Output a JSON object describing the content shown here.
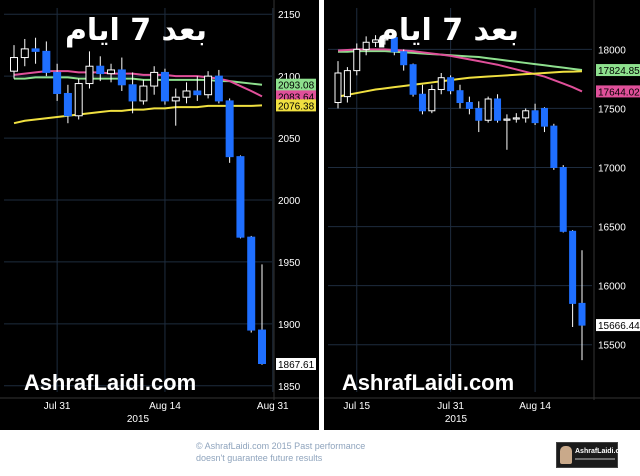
{
  "chart_data": [
    {
      "type": "candlestick",
      "instrument": "",
      "title": "بعد 7 ايام",
      "watermark": "AshrafLaidi.com",
      "ylim": [
        1845,
        2155
      ],
      "yticks": [
        1850,
        1900,
        1950,
        2000,
        2050,
        2100,
        2150
      ],
      "x_tick_labels": [
        {
          "label": "Jul 31",
          "index": 4
        },
        {
          "label": "Aug 14",
          "index": 14
        },
        {
          "label": "Aug 31",
          "index": 24
        }
      ],
      "year_label": "2015",
      "candles": [
        {
          "o": 2104,
          "h": 2125,
          "l": 2098,
          "c": 2115
        },
        {
          "o": 2115,
          "h": 2130,
          "l": 2108,
          "c": 2122
        },
        {
          "o": 2122,
          "h": 2131,
          "l": 2110,
          "c": 2120
        },
        {
          "o": 2120,
          "h": 2128,
          "l": 2100,
          "c": 2103
        },
        {
          "o": 2103,
          "h": 2110,
          "l": 2080,
          "c": 2086
        },
        {
          "o": 2086,
          "h": 2093,
          "l": 2062,
          "c": 2068
        },
        {
          "o": 2068,
          "h": 2098,
          "l": 2065,
          "c": 2094
        },
        {
          "o": 2094,
          "h": 2120,
          "l": 2090,
          "c": 2108
        },
        {
          "o": 2108,
          "h": 2116,
          "l": 2096,
          "c": 2102
        },
        {
          "o": 2102,
          "h": 2110,
          "l": 2095,
          "c": 2105
        },
        {
          "o": 2105,
          "h": 2115,
          "l": 2088,
          "c": 2093
        },
        {
          "o": 2093,
          "h": 2103,
          "l": 2070,
          "c": 2080
        },
        {
          "o": 2080,
          "h": 2097,
          "l": 2077,
          "c": 2092
        },
        {
          "o": 2092,
          "h": 2108,
          "l": 2085,
          "c": 2103
        },
        {
          "o": 2103,
          "h": 2106,
          "l": 2077,
          "c": 2080
        },
        {
          "o": 2080,
          "h": 2090,
          "l": 2060,
          "c": 2083
        },
        {
          "o": 2083,
          "h": 2095,
          "l": 2078,
          "c": 2088
        },
        {
          "o": 2088,
          "h": 2100,
          "l": 2080,
          "c": 2085
        },
        {
          "o": 2085,
          "h": 2104,
          "l": 2082,
          "c": 2100
        },
        {
          "o": 2100,
          "h": 2105,
          "l": 2078,
          "c": 2080
        },
        {
          "o": 2080,
          "h": 2082,
          "l": 2030,
          "c": 2035
        },
        {
          "o": 2035,
          "h": 2036,
          "l": 1969,
          "c": 1970
        },
        {
          "o": 1970,
          "h": 1971,
          "l": 1893,
          "c": 1895
        },
        {
          "o": 1895,
          "h": 1948,
          "l": 1867,
          "c": 1868
        }
      ],
      "moving_averages": [
        {
          "color": "#8ee08e",
          "values": [
            2098,
            2098,
            2099,
            2099,
            2099,
            2099,
            2098,
            2098,
            2098,
            2098,
            2098,
            2098,
            2097,
            2097,
            2097,
            2097,
            2097,
            2097,
            2097,
            2096,
            2096,
            2095,
            2094,
            2093.08
          ]
        },
        {
          "color": "#e0509a",
          "values": [
            2101,
            2102,
            2103,
            2104,
            2104,
            2104,
            2103,
            2103,
            2103,
            2102,
            2102,
            2102,
            2101,
            2101,
            2101,
            2100,
            2100,
            2100,
            2099,
            2098,
            2096,
            2092,
            2088,
            2083.64
          ]
        },
        {
          "color": "#f0e040",
          "values": [
            2062,
            2064,
            2065,
            2066,
            2067,
            2068,
            2069,
            2070,
            2071,
            2072,
            2072,
            2073,
            2073,
            2074,
            2074,
            2075,
            2075,
            2075,
            2076,
            2076,
            2076,
            2076,
            2076,
            2076.38
          ]
        }
      ],
      "price_tags": [
        {
          "value": 2093.08,
          "label": "2093.08",
          "color": "#8ee08e"
        },
        {
          "value": 2083.64,
          "label": "2083.64",
          "color": "#e0509a"
        },
        {
          "value": 2076.38,
          "label": "2076.38",
          "color": "#f0e040"
        },
        {
          "value": 1867.61,
          "label": "1867.61",
          "color": "#ffffff"
        }
      ]
    },
    {
      "type": "candlestick",
      "instrument": "",
      "title": "بعد 7 ايام",
      "watermark": "AshrafLaidi.com",
      "ylim": [
        15100,
        18350
      ],
      "yticks": [
        15500,
        16000,
        16500,
        17000,
        17500,
        18000
      ],
      "x_tick_labels": [
        {
          "label": "Jul 15",
          "index": 2
        },
        {
          "label": "Jul 31",
          "index": 12
        },
        {
          "label": "Aug 14",
          "index": 21
        }
      ],
      "year_label": "2015",
      "candles": [
        {
          "o": 17550,
          "h": 17900,
          "l": 17500,
          "c": 17800
        },
        {
          "o": 17600,
          "h": 17850,
          "l": 17550,
          "c": 17820
        },
        {
          "o": 17820,
          "h": 18050,
          "l": 17780,
          "c": 18000
        },
        {
          "o": 18000,
          "h": 18110,
          "l": 17950,
          "c": 18060
        },
        {
          "o": 18060,
          "h": 18120,
          "l": 18020,
          "c": 18080
        },
        {
          "o": 18080,
          "h": 18140,
          "l": 18040,
          "c": 18090
        },
        {
          "o": 18100,
          "h": 18110,
          "l": 17950,
          "c": 17980
        },
        {
          "o": 17980,
          "h": 18000,
          "l": 17820,
          "c": 17870
        },
        {
          "o": 17870,
          "h": 17880,
          "l": 17600,
          "c": 17620
        },
        {
          "o": 17620,
          "h": 17700,
          "l": 17450,
          "c": 17480
        },
        {
          "o": 17480,
          "h": 17700,
          "l": 17460,
          "c": 17660
        },
        {
          "o": 17660,
          "h": 17800,
          "l": 17620,
          "c": 17760
        },
        {
          "o": 17760,
          "h": 17780,
          "l": 17620,
          "c": 17650
        },
        {
          "o": 17650,
          "h": 17700,
          "l": 17500,
          "c": 17550
        },
        {
          "o": 17550,
          "h": 17600,
          "l": 17450,
          "c": 17500
        },
        {
          "o": 17500,
          "h": 17560,
          "l": 17300,
          "c": 17400
        },
        {
          "o": 17400,
          "h": 17600,
          "l": 17380,
          "c": 17580
        },
        {
          "o": 17580,
          "h": 17620,
          "l": 17380,
          "c": 17400
        },
        {
          "o": 17400,
          "h": 17450,
          "l": 17150,
          "c": 17410
        },
        {
          "o": 17410,
          "h": 17460,
          "l": 17380,
          "c": 17420
        },
        {
          "o": 17420,
          "h": 17500,
          "l": 17380,
          "c": 17480
        },
        {
          "o": 17480,
          "h": 17540,
          "l": 17360,
          "c": 17380
        },
        {
          "o": 17500,
          "h": 17510,
          "l": 17300,
          "c": 17350
        },
        {
          "o": 17350,
          "h": 17370,
          "l": 16980,
          "c": 17000
        },
        {
          "o": 17000,
          "h": 17020,
          "l": 16450,
          "c": 16460
        },
        {
          "o": 16460,
          "h": 16470,
          "l": 15650,
          "c": 15850
        },
        {
          "o": 15850,
          "h": 16300,
          "l": 15370,
          "c": 15666
        }
      ],
      "moving_averages": [
        {
          "color": "#8ee08e",
          "values": [
            17980,
            17980,
            17985,
            17985,
            17985,
            17985,
            17980,
            17975,
            17970,
            17965,
            17960,
            17955,
            17950,
            17945,
            17940,
            17935,
            17925,
            17915,
            17905,
            17895,
            17885,
            17875,
            17865,
            17855,
            17845,
            17835,
            17824.85
          ]
        },
        {
          "color": "#e0509a",
          "values": [
            17990,
            17995,
            18000,
            18000,
            18000,
            18000,
            17995,
            17990,
            17985,
            17975,
            17965,
            17955,
            17945,
            17930,
            17915,
            17900,
            17885,
            17870,
            17850,
            17830,
            17810,
            17790,
            17770,
            17740,
            17710,
            17680,
            17644.02
          ]
        },
        {
          "color": "#f0e040",
          "values": [
            17600,
            17615,
            17630,
            17645,
            17660,
            17670,
            17680,
            17690,
            17700,
            17710,
            17720,
            17730,
            17740,
            17750,
            17760,
            17765,
            17770,
            17775,
            17780,
            17785,
            17790,
            17795,
            17800,
            17805,
            17810,
            17812,
            17815
          ]
        }
      ],
      "price_tags": [
        {
          "value": 17824.85,
          "label": "17824.85",
          "color": "#8ee08e"
        },
        {
          "value": 17644.02,
          "label": "17644.02",
          "color": "#e0509a"
        },
        {
          "value": 15666.44,
          "label": "15666.44",
          "color": "#ffffff"
        }
      ]
    }
  ],
  "footer": {
    "copyright_line1": "© AshrafLaidi.com 2015 Past performance",
    "copyright_line2": "doesn't guarantee future results",
    "logo_text": "AshrafLaidi.com"
  },
  "colors": {
    "panel_bg": "#000000",
    "grid": "#1e2c3e",
    "candle_up": "#000000",
    "candle_up_outline": "#ffffff",
    "candle_down": "#1f6fff",
    "wick": "#ffffff",
    "axis_text": "#ffffff",
    "axis_bg": "#000000"
  }
}
